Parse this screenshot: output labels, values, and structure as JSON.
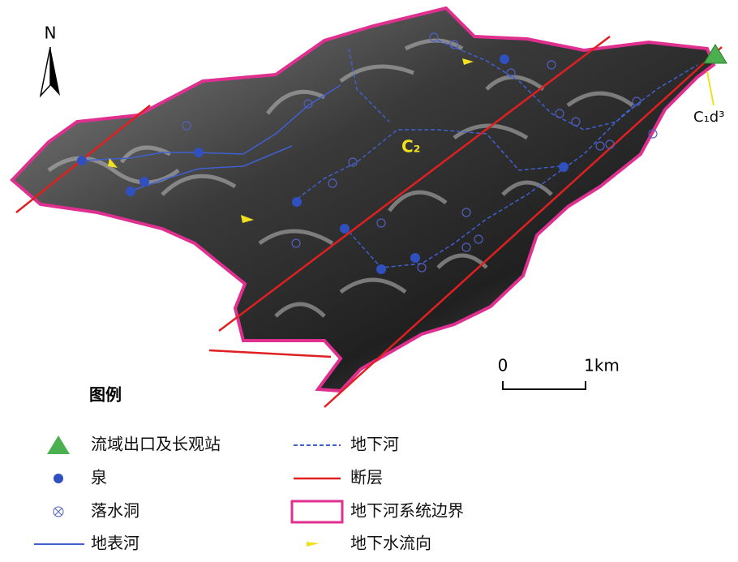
{
  "map": {
    "north_label": "N",
    "formation_labels": [
      "C₂",
      "C₁d³"
    ],
    "scale_bar": {
      "start": "0",
      "end": "1km"
    }
  },
  "legend": {
    "title": "图例",
    "items": [
      "流域出口及长观站",
      "泉",
      "落水洞",
      "地表河",
      "地下河",
      "断层",
      "地下河系统边界",
      "地下水流向"
    ]
  }
}
